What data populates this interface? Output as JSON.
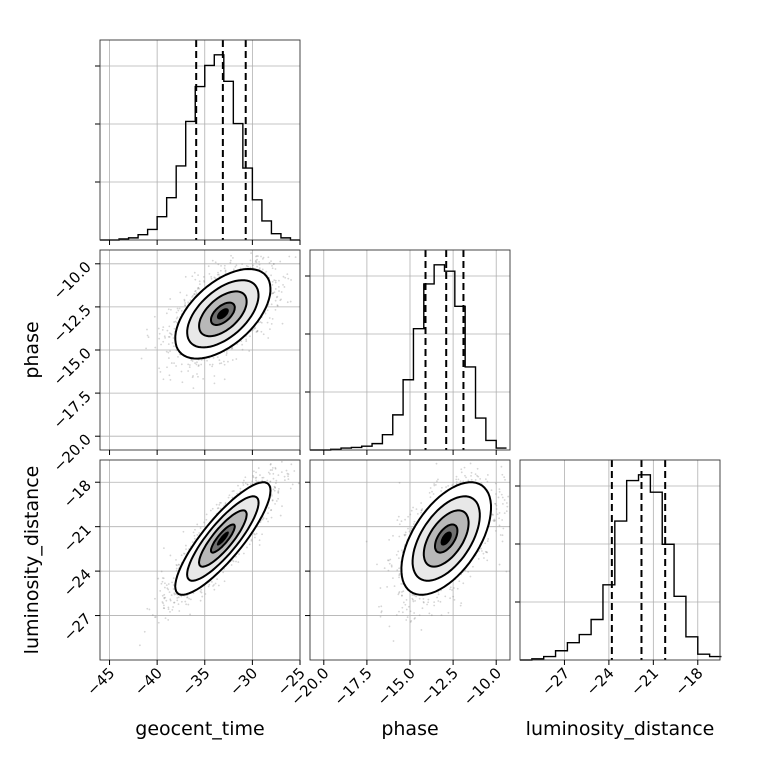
{
  "chart_data": {
    "type": "corner",
    "parameters": [
      "geocent_time",
      "phase",
      "luminosity_distance"
    ],
    "axis_ranges": {
      "geocent_time": [
        -46,
        -25
      ],
      "phase": [
        -20.8,
        -9.2
      ],
      "luminosity_distance": [
        -30,
        -16.5
      ]
    },
    "ticks": {
      "geocent_time": [
        {
          "value": -45,
          "label": "−45"
        },
        {
          "value": -40,
          "label": "−40"
        },
        {
          "value": -35,
          "label": "−35"
        },
        {
          "value": -30,
          "label": "−30"
        },
        {
          "value": -25,
          "label": "−25"
        }
      ],
      "phase": [
        {
          "value": -20.0,
          "label": "−20.0"
        },
        {
          "value": -17.5,
          "label": "−17.5"
        },
        {
          "value": -15.0,
          "label": "−15.0"
        },
        {
          "value": -12.5,
          "label": "−12.5"
        },
        {
          "value": -10.0,
          "label": "−10.0"
        }
      ],
      "luminosity_distance": [
        {
          "value": -27,
          "label": "−27"
        },
        {
          "value": -24,
          "label": "−24"
        },
        {
          "value": -21,
          "label": "−21"
        },
        {
          "value": -18,
          "label": "−18"
        }
      ]
    },
    "marginal_histograms": [
      {
        "parameter": "geocent_time",
        "bin_edges": [
          -46,
          -45,
          -44,
          -43,
          -42,
          -41,
          -40,
          -39,
          -38,
          -37,
          -36,
          -35,
          -34,
          -33,
          -32,
          -31,
          -30,
          -29,
          -28,
          -27,
          -26,
          -25
        ],
        "counts": [
          0,
          0,
          1,
          2,
          5,
          10,
          22,
          40,
          70,
          112,
          145,
          165,
          175,
          150,
          110,
          68,
          38,
          18,
          6,
          2,
          0
        ],
        "quantiles": [
          -35.9,
          -33.1,
          -30.7
        ]
      },
      {
        "parameter": "phase",
        "bin_edges": [
          -20.8,
          -20.2,
          -19.6,
          -19.0,
          -18.4,
          -17.8,
          -17.2,
          -16.6,
          -16.0,
          -15.4,
          -14.8,
          -14.2,
          -13.6,
          -13.0,
          -12.4,
          -11.8,
          -11.2,
          -10.6,
          -10.0,
          -9.4
        ],
        "counts": [
          0,
          0,
          1,
          3,
          4,
          6,
          10,
          24,
          55,
          110,
          190,
          260,
          290,
          280,
          225,
          130,
          50,
          15,
          3
        ],
        "quantiles": [
          -14.1,
          -12.9,
          -11.9
        ]
      },
      {
        "parameter": "luminosity_distance",
        "bin_edges": [
          -30,
          -29.2,
          -28.4,
          -27.6,
          -26.8,
          -26.0,
          -25.2,
          -24.4,
          -23.6,
          -22.8,
          -22.0,
          -21.2,
          -20.4,
          -19.6,
          -18.8,
          -18.0,
          -17.2,
          -16.4
        ],
        "counts": [
          0,
          1,
          3,
          8,
          15,
          22,
          35,
          65,
          120,
          155,
          160,
          145,
          100,
          55,
          20,
          5,
          3
        ],
        "quantiles": [
          -23.8,
          -21.8,
          -20.2
        ]
      }
    ],
    "joint_distributions": [
      {
        "x": "geocent_time",
        "y": "phase",
        "mean": [
          -33.1,
          -12.9
        ],
        "sd": [
          2.5,
          1.3
        ],
        "correlation": 0.55
      },
      {
        "x": "geocent_time",
        "y": "luminosity_distance",
        "mean": [
          -33.1,
          -21.8
        ],
        "sd": [
          2.5,
          1.9
        ],
        "correlation": 0.85
      },
      {
        "x": "phase",
        "y": "luminosity_distance",
        "mean": [
          -12.9,
          -21.8
        ],
        "sd": [
          1.3,
          1.9
        ],
        "correlation": 0.55
      }
    ],
    "contour_levels_sigma": [
      0.5,
      1.0,
      1.5,
      2.0
    ],
    "grid": true,
    "legend": "none"
  }
}
